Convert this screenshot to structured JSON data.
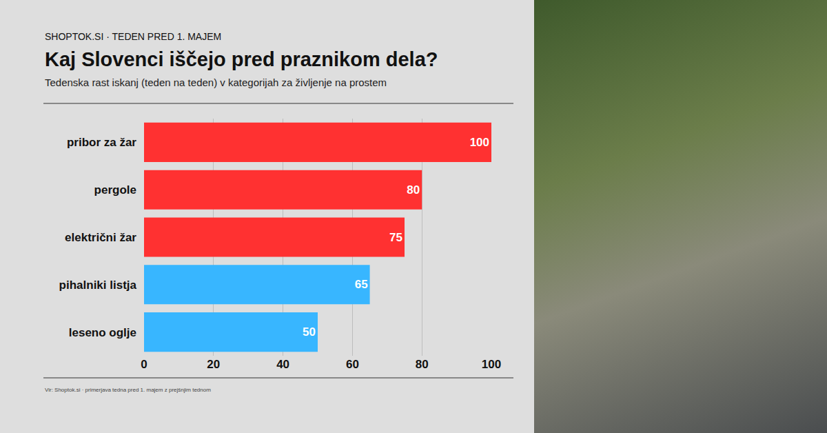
{
  "chart_data": {
    "type": "bar",
    "title": "Kaj Slovenci iščejo pred praznikom dela?",
    "subtitle": "Tedenska rast iskanj (teden na teden) v kategorijah za življenje na prostem",
    "annotations": [
      "SHOPTOK.SI · TEDEN PRED 1. MAJEM",
      "Vir: Shoptok.si · primerjava tedna pred 1. majem z prejšnjim tednom"
    ],
    "orientation": "horizontal",
    "categories": [
      "pribor za žar",
      "pergole",
      "električni žar",
      "pihalniki listja",
      "leseno oglje"
    ],
    "values": [
      100,
      80,
      75,
      65,
      50
    ],
    "colors": [
      "#ff3131",
      "#ff3131",
      "#ff3131",
      "#38b6ff",
      "#38b6ff"
    ],
    "xlim": [
      0,
      100
    ],
    "xticks": [
      0,
      20,
      40,
      60,
      80,
      100
    ],
    "grid": true,
    "data_labels": true
  }
}
